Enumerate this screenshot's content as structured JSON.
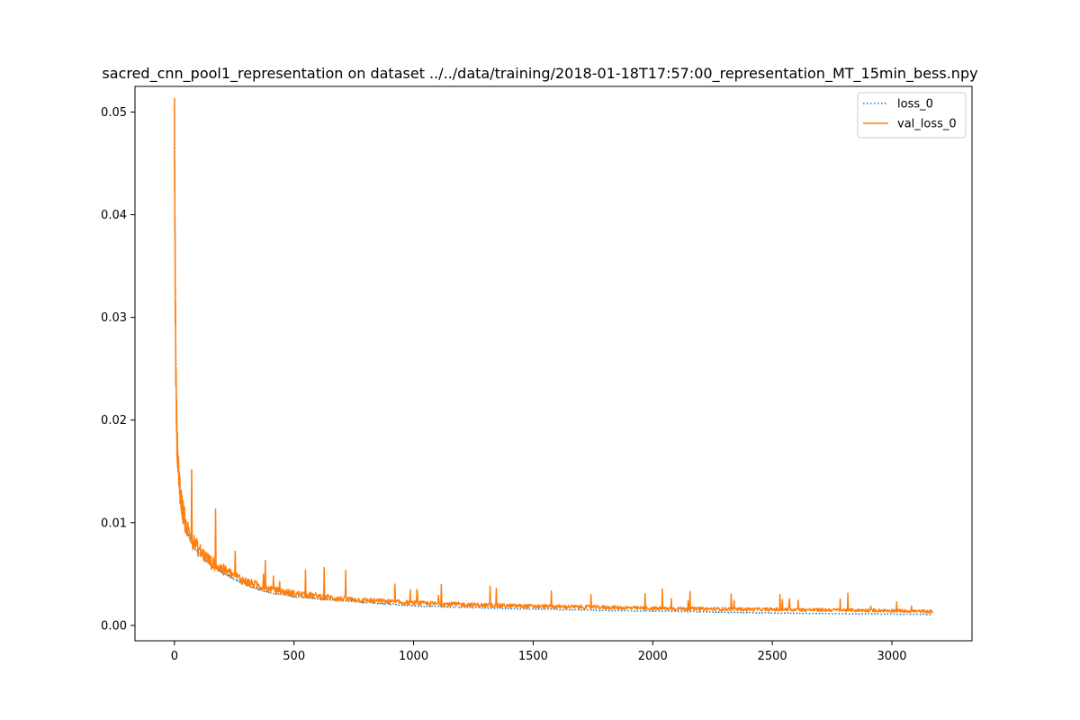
{
  "chart_data": {
    "type": "line",
    "title": "sacred_cnn_pool1_representation on dataset ../../data/training/2018-01-18T17:57:00_representation_MT_15min_bess.npy",
    "xlabel": "",
    "ylabel": "",
    "xlim": [
      -165,
      3335
    ],
    "ylim": [
      -0.0015,
      0.0525
    ],
    "x_ticks": [
      0,
      500,
      1000,
      1500,
      2000,
      2500,
      3000
    ],
    "x_tick_labels": [
      "0",
      "500",
      "1000",
      "1500",
      "2000",
      "2500",
      "3000"
    ],
    "y_ticks": [
      0.0,
      0.01,
      0.02,
      0.03,
      0.04,
      0.05
    ],
    "y_tick_labels": [
      "0.00",
      "0.01",
      "0.02",
      "0.03",
      "0.04",
      "0.05"
    ],
    "grid": false,
    "legend_position": "upper right",
    "series": [
      {
        "name": "loss_0",
        "color": "#1f77b4",
        "style": "dotted",
        "x": [
          0,
          2,
          5,
          10,
          20,
          30,
          50,
          75,
          100,
          150,
          200,
          300,
          400,
          500,
          700,
          1000,
          1300,
          1500,
          1800,
          2000,
          2500,
          3000,
          3170
        ],
        "y": [
          0.0507,
          0.04,
          0.028,
          0.019,
          0.0135,
          0.0115,
          0.0092,
          0.0079,
          0.007,
          0.0059,
          0.0051,
          0.0039,
          0.0032,
          0.0028,
          0.0024,
          0.0019,
          0.0017,
          0.0016,
          0.00145,
          0.0014,
          0.0012,
          0.0011,
          0.00105
        ]
      },
      {
        "name": "val_loss_0",
        "color": "#ff7f0e",
        "style": "solid",
        "x": [
          0,
          2,
          5,
          10,
          20,
          30,
          50,
          75,
          100,
          150,
          200,
          300,
          400,
          500,
          700,
          1000,
          1300,
          1500,
          1800,
          2000,
          2500,
          3000,
          3170
        ],
        "y": [
          0.0468,
          0.037,
          0.026,
          0.018,
          0.0132,
          0.0114,
          0.0093,
          0.008,
          0.0072,
          0.006,
          0.0053,
          0.0041,
          0.0034,
          0.003,
          0.0025,
          0.0021,
          0.0019,
          0.0018,
          0.0017,
          0.0016,
          0.0015,
          0.0014,
          0.0013
        ]
      }
    ]
  }
}
